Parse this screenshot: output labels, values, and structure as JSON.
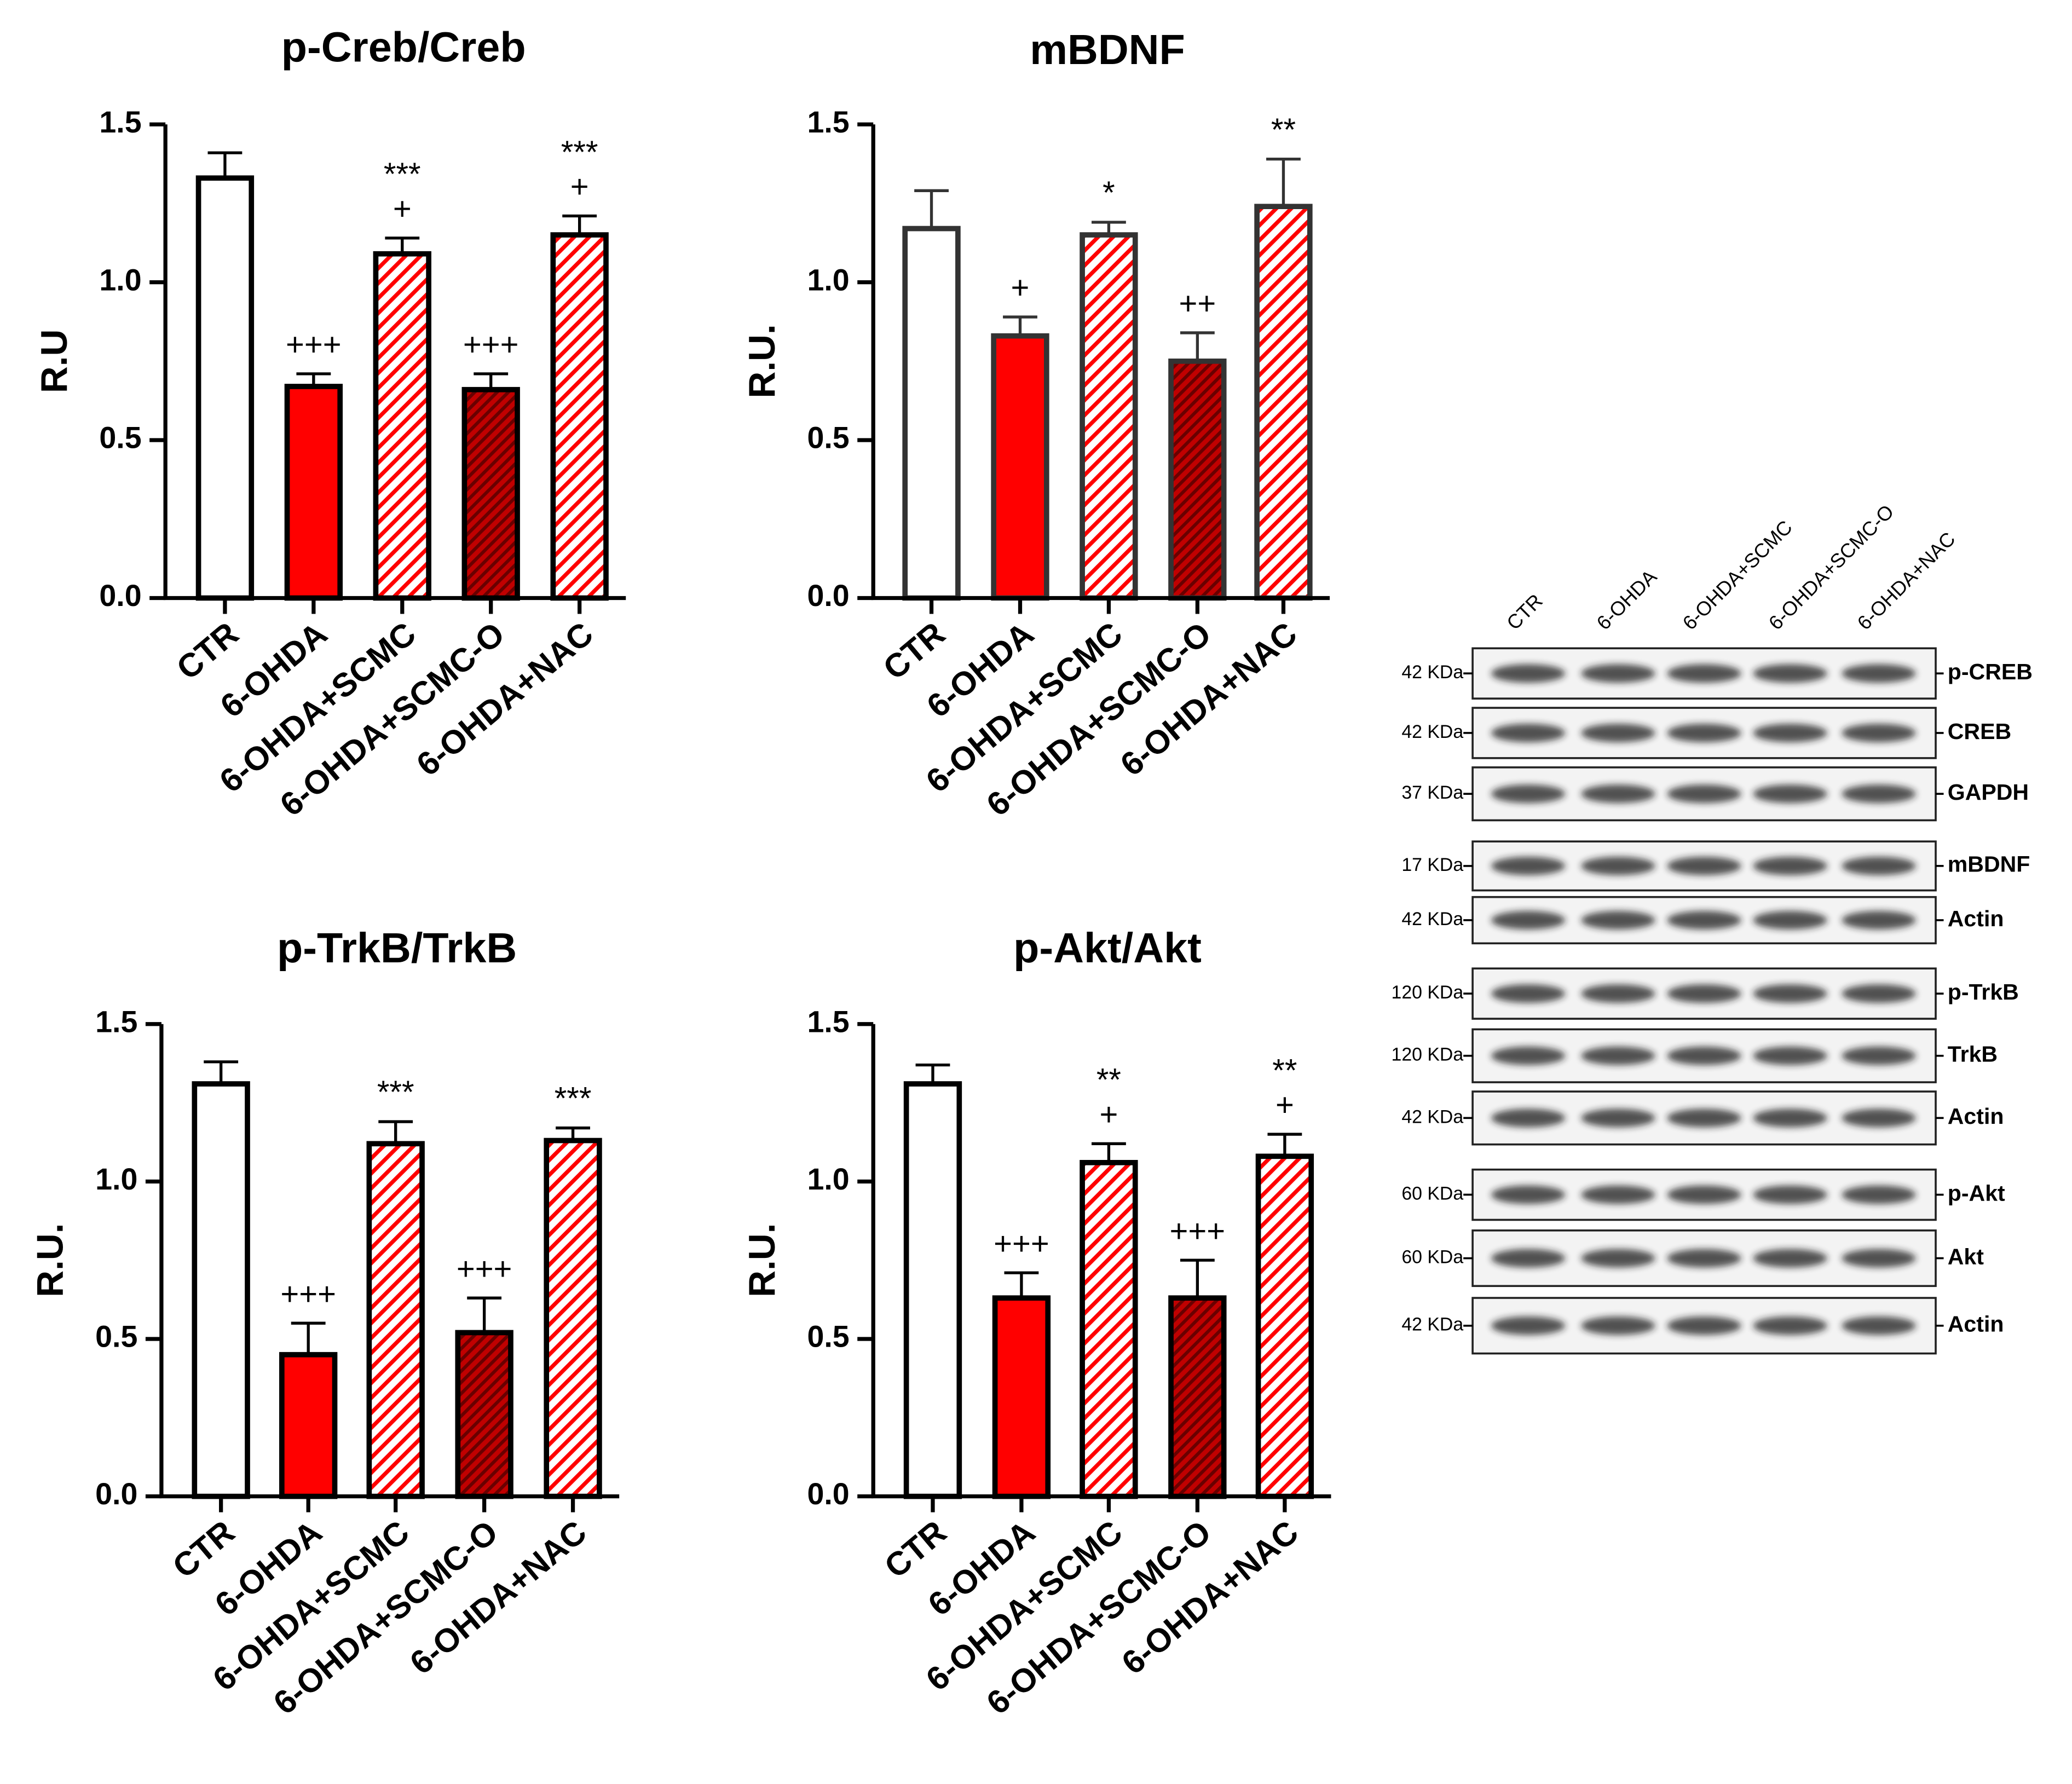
{
  "chart_data": [
    {
      "type": "bar",
      "title": "p-Creb/Creb",
      "ylabel": "R.U",
      "categories": [
        "CTR",
        "6-OHDA",
        "6-OHDA+SCMC",
        "6-OHDA+SCMC-O",
        "6-OHDA+NAC"
      ],
      "values": [
        1.33,
        0.67,
        1.09,
        0.66,
        1.15
      ],
      "errors": [
        0.08,
        0.04,
        0.05,
        0.05,
        0.06
      ],
      "annotations": [
        null,
        [
          "+++"
        ],
        [
          "***",
          "+"
        ],
        [
          "+++"
        ],
        [
          "***",
          "+"
        ]
      ],
      "colors": [
        "#ffffff",
        "#ff0000",
        "#ff0000",
        "#c00000",
        "#ff0000"
      ],
      "patterns": [
        "solid",
        "solid",
        "hatch",
        "dense-hatch",
        "hatch"
      ],
      "edgecolor": "#000000",
      "ylim": [
        0,
        1.5
      ],
      "yticks": [
        {
          "value": 0,
          "label": "0.0"
        },
        0.5,
        {
          "value": 1,
          "label": "1.0"
        },
        1.5
      ]
    },
    {
      "type": "bar",
      "title": "mBDNF",
      "ylabel": "R.U.",
      "categories": [
        "CTR",
        "6-OHDA",
        "6-OHDA+SCMC",
        "6-OHDA+SCMC-O",
        "6-OHDA+NAC"
      ],
      "values": [
        1.17,
        0.83,
        1.15,
        0.75,
        1.24
      ],
      "errors": [
        0.12,
        0.06,
        0.04,
        0.09,
        0.15
      ],
      "annotations": [
        null,
        [
          "+"
        ],
        [
          "*"
        ],
        [
          "++"
        ],
        [
          "**"
        ]
      ],
      "colors": [
        "#ffffff",
        "#ff0000",
        "#ff0000",
        "#c00000",
        "#ff0000"
      ],
      "patterns": [
        "solid",
        "solid",
        "hatch",
        "dense-hatch",
        "hatch"
      ],
      "edgecolor": "#333333",
      "ylim": [
        0,
        1.5
      ],
      "yticks": [
        {
          "value": 0,
          "label": "0.0"
        },
        0.5,
        {
          "value": 1,
          "label": "1.0"
        },
        1.5
      ]
    },
    {
      "type": "bar",
      "title": "p-TrkB/TrkB",
      "ylabel": "R.U.",
      "categories": [
        "CTR",
        "6-OHDA",
        "6-OHDA+SCMC",
        "6-OHDA+SCMC-O",
        "6-OHDA+NAC"
      ],
      "values": [
        1.31,
        0.45,
        1.12,
        0.52,
        1.13
      ],
      "errors": [
        0.07,
        0.1,
        0.07,
        0.11,
        0.04
      ],
      "annotations": [
        null,
        [
          "+++"
        ],
        [
          "***"
        ],
        [
          "+++"
        ],
        [
          "***"
        ]
      ],
      "colors": [
        "#ffffff",
        "#ff0000",
        "#ff0000",
        "#c00000",
        "#ff0000"
      ],
      "patterns": [
        "solid",
        "solid",
        "hatch",
        "dense-hatch",
        "hatch"
      ],
      "edgecolor": "#000000",
      "ylim": [
        0,
        1.5
      ],
      "yticks": [
        {
          "value": 0,
          "label": "0.0"
        },
        0.5,
        {
          "value": 1,
          "label": "1.0"
        },
        1.5
      ]
    },
    {
      "type": "bar",
      "title": "p-Akt/Akt",
      "ylabel": "R.U.",
      "categories": [
        "CTR",
        "6-OHDA",
        "6-OHDA+SCMC",
        "6-OHDA+SCMC-O",
        "6-OHDA+NAC"
      ],
      "values": [
        1.31,
        0.63,
        1.06,
        0.63,
        1.08
      ],
      "errors": [
        0.06,
        0.08,
        0.06,
        0.12,
        0.07
      ],
      "annotations": [
        null,
        [
          "+++"
        ],
        [
          "**",
          "+"
        ],
        [
          "+++"
        ],
        [
          "**",
          "+"
        ]
      ],
      "colors": [
        "#ffffff",
        "#ff0000",
        "#ff0000",
        "#c00000",
        "#ff0000"
      ],
      "patterns": [
        "solid",
        "solid",
        "hatch",
        "dense-hatch",
        "hatch"
      ],
      "edgecolor": "#000000",
      "ylim": [
        0,
        1.5
      ],
      "yticks": [
        {
          "value": 0,
          "label": "0.0"
        },
        0.5,
        {
          "value": 1,
          "label": "1.0"
        },
        1.5
      ]
    }
  ],
  "blot": {
    "lanes": [
      "CTR",
      "6-OHDA",
      "6-OHDA+SCMC",
      "6-OHDA+SCMC-O",
      "6-OHDA+NAC"
    ],
    "rows": [
      {
        "kda": "42 KDa",
        "label": "p-CREB"
      },
      {
        "kda": "42 KDa",
        "label": "CREB"
      },
      {
        "kda": "37 KDa",
        "label": "GAPDH"
      },
      {
        "kda": "17 KDa",
        "label": "mBDNF"
      },
      {
        "kda": "42 KDa",
        "label": "Actin"
      },
      {
        "kda": "120 KDa",
        "label": "p-TrkB"
      },
      {
        "kda": "120 KDa",
        "label": "TrkB"
      },
      {
        "kda": "42 KDa",
        "label": "Actin"
      },
      {
        "kda": "60 KDa",
        "label": "p-Akt"
      },
      {
        "kda": "60 KDa",
        "label": "Akt"
      },
      {
        "kda": "42 KDa",
        "label": "Actin"
      }
    ]
  }
}
